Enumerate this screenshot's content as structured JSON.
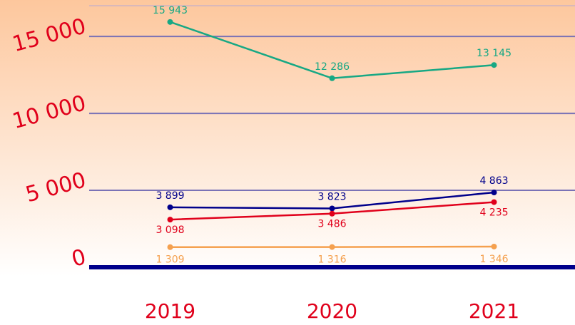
{
  "chart_data": {
    "type": "line",
    "categories": [
      "2019",
      "2020",
      "2021"
    ],
    "series": [
      {
        "color": "#17a884",
        "values": [
          15943,
          12286,
          13145
        ],
        "value_labels": [
          "15 943",
          "12 286",
          "13 145"
        ]
      },
      {
        "color": "#00008b",
        "values": [
          3899,
          3823,
          4863
        ],
        "value_labels": [
          "3 899",
          "3 823",
          "4 863"
        ]
      },
      {
        "color": "#e0001b",
        "values": [
          3098,
          3486,
          4235
        ],
        "value_labels": [
          "3 098",
          "3 486",
          "4 235"
        ]
      },
      {
        "color": "#f5a04e",
        "values": [
          1309,
          1316,
          1346
        ],
        "value_labels": [
          "1 309",
          "1 316",
          "1 346"
        ]
      }
    ],
    "ylim": [
      0,
      17000
    ],
    "yticks": [
      0,
      {
        "value": 5000,
        "label": "5 000"
      },
      {
        "value": 10000,
        "label": "10 000"
      },
      {
        "value": 15000,
        "label": "15 000"
      }
    ],
    "grid": true
  }
}
